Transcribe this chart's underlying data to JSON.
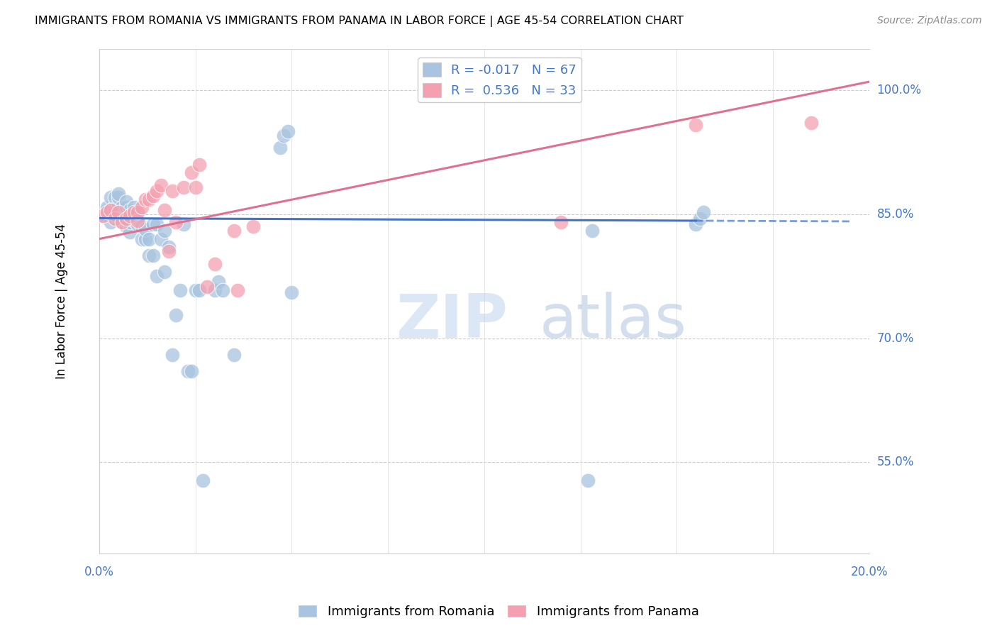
{
  "title": "IMMIGRANTS FROM ROMANIA VS IMMIGRANTS FROM PANAMA IN LABOR FORCE | AGE 45-54 CORRELATION CHART",
  "source": "Source: ZipAtlas.com",
  "ylabel": "In Labor Force | Age 45-54",
  "xlim": [
    0.0,
    0.2
  ],
  "ylim": [
    0.44,
    1.05
  ],
  "yticks": [
    0.55,
    0.7,
    0.85,
    1.0
  ],
  "ytick_labels": [
    "55.0%",
    "70.0%",
    "85.0%",
    "100.0%"
  ],
  "romania_R": -0.017,
  "romania_N": 67,
  "panama_R": 0.536,
  "panama_N": 33,
  "legend_label_romania": "Immigrants from Romania",
  "legend_label_panama": "Immigrants from Panama",
  "romania_color": "#a8c4e0",
  "panama_color": "#f4a0b0",
  "romania_line_color": "#4472c4",
  "panama_line_color": "#e07090",
  "watermark_zip": "ZIP",
  "watermark_atlas": "atlas",
  "romania_scatter_x": [
    0.001,
    0.002,
    0.002,
    0.003,
    0.003,
    0.003,
    0.004,
    0.004,
    0.004,
    0.005,
    0.005,
    0.005,
    0.005,
    0.006,
    0.006,
    0.006,
    0.007,
    0.007,
    0.007,
    0.007,
    0.007,
    0.008,
    0.008,
    0.008,
    0.008,
    0.009,
    0.009,
    0.009,
    0.01,
    0.01,
    0.01,
    0.011,
    0.011,
    0.012,
    0.012,
    0.013,
    0.013,
    0.014,
    0.014,
    0.015,
    0.015,
    0.016,
    0.017,
    0.017,
    0.018,
    0.019,
    0.02,
    0.021,
    0.022,
    0.023,
    0.024,
    0.025,
    0.026,
    0.027,
    0.03,
    0.031,
    0.032,
    0.035,
    0.047,
    0.048,
    0.049,
    0.05,
    0.127,
    0.128,
    0.155,
    0.156,
    0.157
  ],
  "romania_scatter_y": [
    0.848,
    0.855,
    0.858,
    0.84,
    0.855,
    0.87,
    0.85,
    0.86,
    0.87,
    0.858,
    0.862,
    0.87,
    0.875,
    0.84,
    0.85,
    0.858,
    0.835,
    0.842,
    0.85,
    0.858,
    0.865,
    0.828,
    0.84,
    0.848,
    0.855,
    0.842,
    0.85,
    0.858,
    0.838,
    0.845,
    0.852,
    0.82,
    0.835,
    0.82,
    0.832,
    0.8,
    0.82,
    0.838,
    0.8,
    0.838,
    0.775,
    0.82,
    0.83,
    0.78,
    0.81,
    0.68,
    0.728,
    0.758,
    0.838,
    0.66,
    0.66,
    0.758,
    0.758,
    0.528,
    0.758,
    0.768,
    0.758,
    0.68,
    0.93,
    0.945,
    0.95,
    0.755,
    0.528,
    0.83,
    0.838,
    0.845,
    0.852
  ],
  "panama_scatter_x": [
    0.001,
    0.002,
    0.003,
    0.004,
    0.005,
    0.006,
    0.007,
    0.008,
    0.009,
    0.01,
    0.01,
    0.011,
    0.012,
    0.013,
    0.014,
    0.015,
    0.016,
    0.017,
    0.018,
    0.019,
    0.02,
    0.022,
    0.024,
    0.025,
    0.026,
    0.028,
    0.03,
    0.035,
    0.036,
    0.04,
    0.12,
    0.155,
    0.185
  ],
  "panama_scatter_y": [
    0.848,
    0.852,
    0.855,
    0.845,
    0.852,
    0.84,
    0.845,
    0.848,
    0.852,
    0.842,
    0.852,
    0.858,
    0.868,
    0.868,
    0.872,
    0.878,
    0.885,
    0.855,
    0.805,
    0.878,
    0.84,
    0.882,
    0.9,
    0.882,
    0.91,
    0.762,
    0.79,
    0.83,
    0.758,
    0.835,
    0.84,
    0.958,
    0.96
  ],
  "romania_line_x0": 0.0,
  "romania_line_y0": 0.845,
  "romania_line_x1": 0.155,
  "romania_line_y1": 0.842,
  "romania_line_x1_solid": 0.155,
  "romania_line_x1_dashed": 0.195,
  "panama_line_x0": 0.0,
  "panama_line_y0": 0.82,
  "panama_line_x1": 0.2,
  "panama_line_y1": 1.01
}
